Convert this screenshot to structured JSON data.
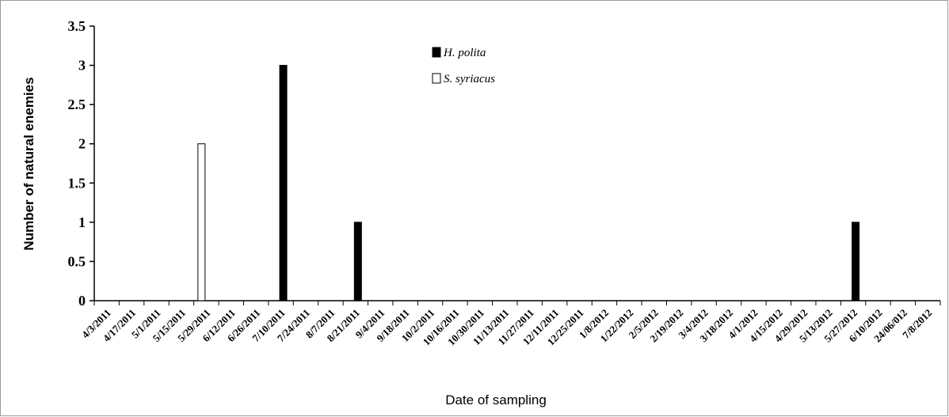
{
  "chart_data": {
    "type": "bar",
    "xlabel": "Date of sampling",
    "ylabel": "Number of natural enemies",
    "ylim": [
      0,
      3.5
    ],
    "yticks": [
      "0",
      "0.5",
      "1",
      "1.5",
      "2",
      "2.5",
      "3",
      "3.5"
    ],
    "grid": false,
    "legend_position": "top-center",
    "categories": [
      "4/3/2011",
      "4/17/2011",
      "5/1/2011",
      "5/15/2011",
      "5/29/2011",
      "6/12/2011",
      "6/26/2011",
      "7/10/2011",
      "7/24/2011",
      "8/7/2011",
      "8/21/2011",
      "9/4/2011",
      "9/18/2011",
      "10/2/2011",
      "10/16/2011",
      "10/30/2011",
      "11/13/2011",
      "11/27/2011",
      "12/11/2011",
      "12/25/2011",
      "1/8/2012",
      "1/22/2012",
      "2/5/2012",
      "2/19/2012",
      "3/4/2012",
      "3/18/2012",
      "4/1/2012",
      "4/15/2012",
      "4/29/2012",
      "5/13/2012",
      "5/27/2012",
      "6/10/2012",
      "24/06/012",
      "7/8/2012"
    ],
    "series": [
      {
        "name": "H. polita",
        "color": "#000000",
        "values": [
          0,
          0,
          0,
          0,
          0,
          0,
          0,
          3,
          0,
          0,
          1,
          0,
          0,
          0,
          0,
          0,
          0,
          0,
          0,
          0,
          0,
          0,
          0,
          0,
          0,
          0,
          0,
          0,
          0,
          0,
          1,
          0,
          0,
          0
        ]
      },
      {
        "name": "S. syriacus",
        "color": "#ffffff",
        "values": [
          0,
          0,
          0,
          0,
          2,
          0,
          0,
          0,
          0,
          0,
          0,
          0,
          0,
          0,
          0,
          0,
          0,
          0,
          0,
          0,
          0,
          0,
          0,
          0,
          0,
          0,
          0,
          0,
          0,
          0,
          0,
          0,
          0,
          0
        ]
      }
    ]
  }
}
